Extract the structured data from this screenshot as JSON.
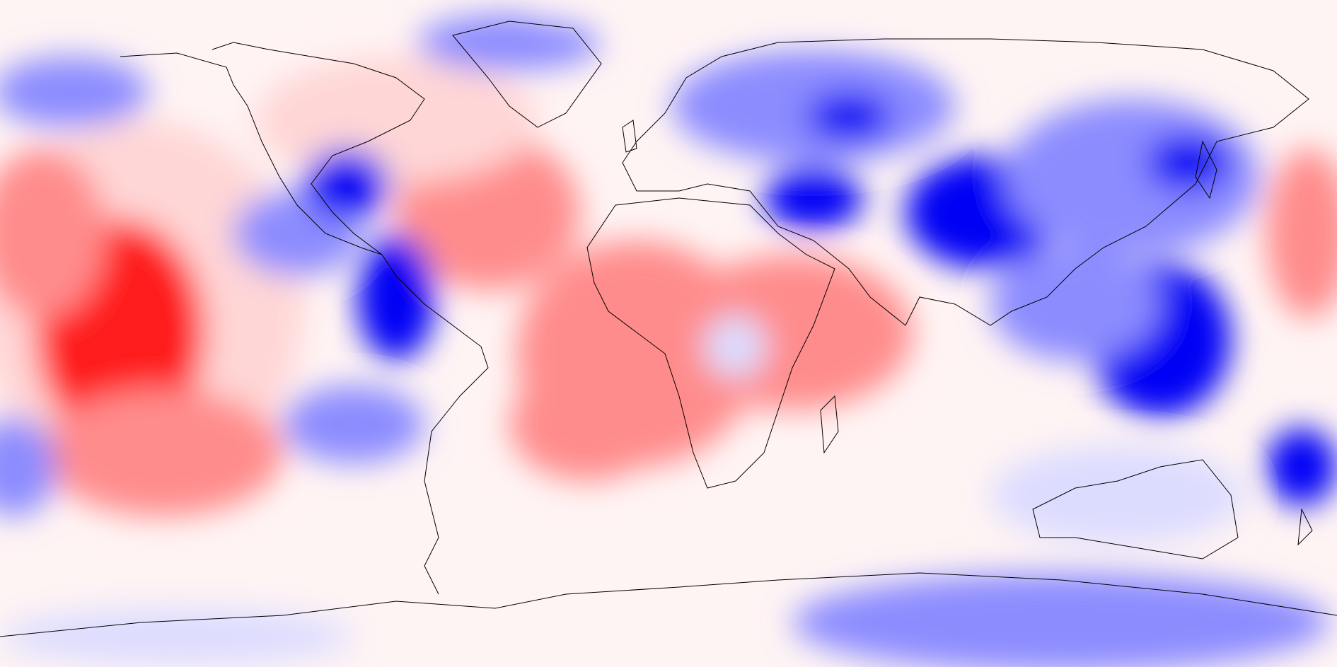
{
  "map": {
    "projection": "equirectangular",
    "field_colors": {
      "strong_positive": "#ff1a1a",
      "positive": "#ff8c8c",
      "weak_positive": "#ffd6d6",
      "neutral": "#fff4f4",
      "weak_negative": "#dcdcff",
      "negative": "#8c8cff",
      "strong_negative": "#0000f5"
    },
    "coastline_color": "#000000",
    "colorbar_visible": false,
    "labels_visible": false
  }
}
